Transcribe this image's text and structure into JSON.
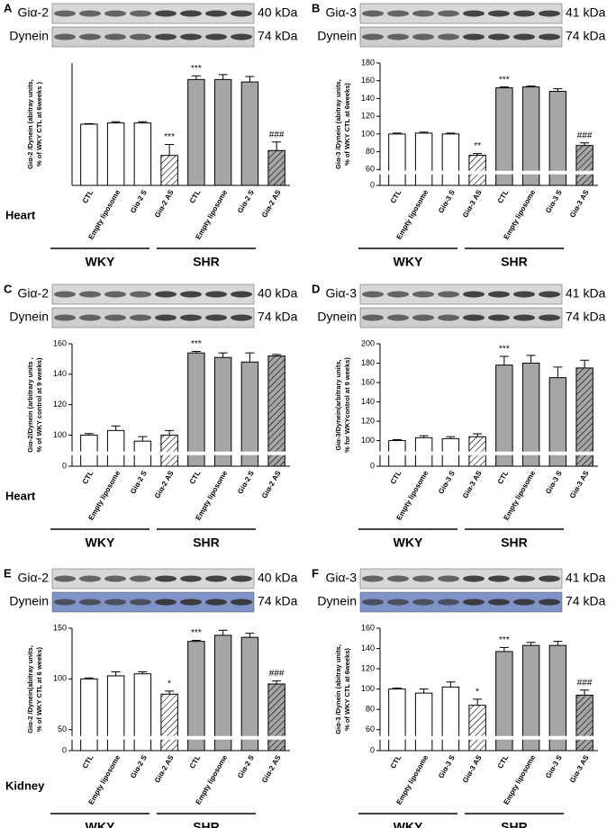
{
  "chart_data": [
    {
      "type": "bar",
      "letter": "A",
      "protein": "Giα-2",
      "protein_kda": "40 kDa",
      "loading": "Dynein",
      "loading_kda": "74 kDa",
      "blot_color": "#cfcfcf",
      "ylabel": [
        "Giα-2 /Dynein (abitray units,",
        "% of  WKY CTL at 6weeks )"
      ],
      "categories": [
        "CTL",
        "Empty liposome",
        "Giα-2 S",
        "Giα-2 AS",
        "CTL",
        "Empty liposome",
        "Giα-2 S",
        "Giα-2 AS"
      ],
      "values": [
        100,
        102,
        102,
        49,
        173,
        173,
        169,
        57
      ],
      "errors": [
        1,
        2,
        2,
        18,
        6,
        8,
        9,
        14
      ],
      "colors": [
        "#ffffff",
        "#ffffff",
        "#ffffff",
        "#ffffff",
        "#a6a6a6",
        "#a6a6a6",
        "#a6a6a6",
        "#a6a6a6"
      ],
      "hatch": [
        false,
        false,
        false,
        true,
        false,
        false,
        false,
        true
      ],
      "annotations": [
        {
          "index": 3,
          "text": "***"
        },
        {
          "index": 4,
          "text": "***"
        },
        {
          "index": 7,
          "text": "###"
        }
      ],
      "ylim": [
        0,
        200
      ],
      "groups": [
        "WKY",
        "SHR"
      ],
      "tissue": "Heart"
    },
    {
      "type": "bar",
      "letter": "B",
      "protein": "Giα-3",
      "protein_kda": "41 kDa",
      "loading": "Dynein",
      "loading_kda": "74 kDa",
      "blot_color": "#cfcfcf",
      "ylabel": [
        "Giα-3 /Dynein (abitray units,",
        "% of  WKY CTL at 6weeks)"
      ],
      "categories": [
        "CTL",
        "Empty liposome",
        "Giα-3 S",
        "Giα-3  AS",
        "CTL",
        "Empty liposome",
        "Giα-3 S",
        "Giα-3 AS"
      ],
      "values": [
        100,
        101,
        100,
        76,
        152,
        153,
        148,
        87
      ],
      "errors": [
        1,
        1,
        1,
        2,
        1,
        1,
        3,
        3
      ],
      "colors": [
        "#ffffff",
        "#ffffff",
        "#ffffff",
        "#ffffff",
        "#a6a6a6",
        "#a6a6a6",
        "#a6a6a6",
        "#a6a6a6"
      ],
      "hatch": [
        false,
        false,
        false,
        true,
        false,
        false,
        false,
        true
      ],
      "annotations": [
        {
          "index": 3,
          "text": "**"
        },
        {
          "index": 4,
          "text": "***"
        },
        {
          "index": 7,
          "text": "###"
        }
      ],
      "ylim": [
        0,
        180
      ],
      "ybreak": [
        10,
        60
      ],
      "yticks": [
        0,
        60,
        80,
        100,
        120,
        140,
        160,
        180
      ],
      "groups": [
        "WKY",
        "SHR"
      ]
    },
    {
      "type": "bar",
      "letter": "C",
      "protein": "Giα-2",
      "protein_kda": "40 kDa",
      "loading": "Dynein",
      "loading_kda": "74 kDa",
      "blot_color": "#cfcfcf",
      "ylabel": [
        "Giα-2/Dynein (arbitrary units ,",
        "% of  WKY control at 9 weeks)"
      ],
      "categories": [
        "CTL",
        "Empty liposome",
        "Giα-2 S",
        "Giα-2 AS",
        "CTL",
        "Empty liposome",
        "Giα-2 S",
        "Giα-2 AS"
      ],
      "values": [
        100,
        103,
        96,
        100,
        154,
        151,
        148,
        152
      ],
      "errors": [
        1,
        3,
        3,
        3,
        1,
        3,
        6,
        1
      ],
      "colors": [
        "#ffffff",
        "#ffffff",
        "#ffffff",
        "#ffffff",
        "#a6a6a6",
        "#a6a6a6",
        "#a6a6a6",
        "#a6a6a6"
      ],
      "hatch": [
        false,
        false,
        false,
        true,
        false,
        false,
        false,
        true
      ],
      "annotations": [
        {
          "index": 4,
          "text": "***"
        }
      ],
      "ylim": [
        0,
        160
      ],
      "ybreak": [
        10,
        90
      ],
      "yticks": [
        0,
        100,
        120,
        140,
        160
      ],
      "groups": [
        "WKY",
        "SHR"
      ],
      "tissue": "Heart"
    },
    {
      "type": "bar",
      "letter": "D",
      "protein": "Giα-3",
      "protein_kda": "41 kDa",
      "loading": "Dynein",
      "loading_kda": "74 kDa",
      "blot_color": "#cfcfcf",
      "ylabel": [
        "Giα-3/Dynein(arbitrary units,",
        "% for WKYcontrol at 9 weeks)"
      ],
      "categories": [
        "CTL",
        "Empty liposome",
        "Giα-3 S",
        "Giα-3 AS",
        "CTL",
        "Empty liposome",
        "Giα-3 S",
        "Giα-3 AS"
      ],
      "values": [
        100,
        103,
        102,
        104,
        178,
        180,
        165,
        175
      ],
      "errors": [
        1,
        2,
        2,
        3,
        9,
        8,
        11,
        8
      ],
      "colors": [
        "#ffffff",
        "#ffffff",
        "#ffffff",
        "#ffffff",
        "#a6a6a6",
        "#a6a6a6",
        "#a6a6a6",
        "#a6a6a6"
      ],
      "hatch": [
        false,
        false,
        false,
        true,
        false,
        false,
        false,
        true
      ],
      "annotations": [
        {
          "index": 4,
          "text": "***"
        }
      ],
      "ylim": [
        0,
        200
      ],
      "ybreak": [
        10,
        90
      ],
      "yticks": [
        0,
        100,
        120,
        140,
        160,
        180,
        200
      ],
      "groups": [
        "WKY",
        "SHR"
      ]
    },
    {
      "type": "bar",
      "letter": "E",
      "protein": "Giα-2",
      "protein_kda": "40 kDa",
      "loading": "Dynein",
      "loading_kda": "74 kDa",
      "blot_color": "#7f93c9",
      "ylabel": [
        "Giα-2 /Dynein(abitray units,",
        "% of  WKY CTL at 6 weeks)"
      ],
      "categories": [
        "CTL",
        "Empty liposome",
        "Giα-2 S",
        "Giα-2 AS",
        "CTL",
        "Empty liposome",
        "Giα-2 S",
        "Giα-2 AS"
      ],
      "values": [
        100,
        103,
        105,
        85,
        137,
        143,
        141,
        95
      ],
      "errors": [
        1,
        4,
        2,
        3,
        1,
        5,
        4,
        3
      ],
      "colors": [
        "#ffffff",
        "#ffffff",
        "#ffffff",
        "#ffffff",
        "#a6a6a6",
        "#a6a6a6",
        "#a6a6a6",
        "#a6a6a6"
      ],
      "hatch": [
        false,
        false,
        false,
        true,
        false,
        false,
        false,
        true
      ],
      "annotations": [
        {
          "index": 3,
          "text": "*"
        },
        {
          "index": 4,
          "text": "***"
        },
        {
          "index": 7,
          "text": "###"
        }
      ],
      "ylim": [
        0,
        150
      ],
      "ybreak": [
        10,
        45
      ],
      "yticks": [
        0,
        50,
        100,
        150
      ],
      "groups": [
        "WKY",
        "SHR"
      ],
      "tissue": "Kidney"
    },
    {
      "type": "bar",
      "letter": "F",
      "protein": "Giα-3",
      "protein_kda": "41 kDa",
      "loading": "Dynein",
      "loading_kda": "74 kDa",
      "blot_color": "#7f93c9",
      "ylabel": [
        "Giα-3 /Dynein (abitray units,",
        "% of  WKY CTL at 6weeks)"
      ],
      "categories": [
        "CTL",
        "Empty liposome",
        "Giα-3 S",
        "Giα-3 AS",
        "CTL",
        "Empty liposome",
        "Giα-3 S",
        "Giα-3 AS"
      ],
      "values": [
        100,
        96,
        102,
        84,
        137,
        143,
        143,
        94
      ],
      "errors": [
        1,
        4,
        5,
        6,
        4,
        3,
        4,
        5
      ],
      "colors": [
        "#ffffff",
        "#ffffff",
        "#ffffff",
        "#ffffff",
        "#a6a6a6",
        "#a6a6a6",
        "#a6a6a6",
        "#a6a6a6"
      ],
      "hatch": [
        false,
        false,
        false,
        true,
        false,
        false,
        false,
        true
      ],
      "annotations": [
        {
          "index": 3,
          "text": "*"
        },
        {
          "index": 4,
          "text": "***"
        },
        {
          "index": 7,
          "text": "###"
        }
      ],
      "ylim": [
        0,
        160
      ],
      "ybreak": [
        10,
        55
      ],
      "yticks": [
        0,
        60,
        80,
        100,
        120,
        140,
        160
      ],
      "groups": [
        "WKY",
        "SHR"
      ]
    }
  ]
}
